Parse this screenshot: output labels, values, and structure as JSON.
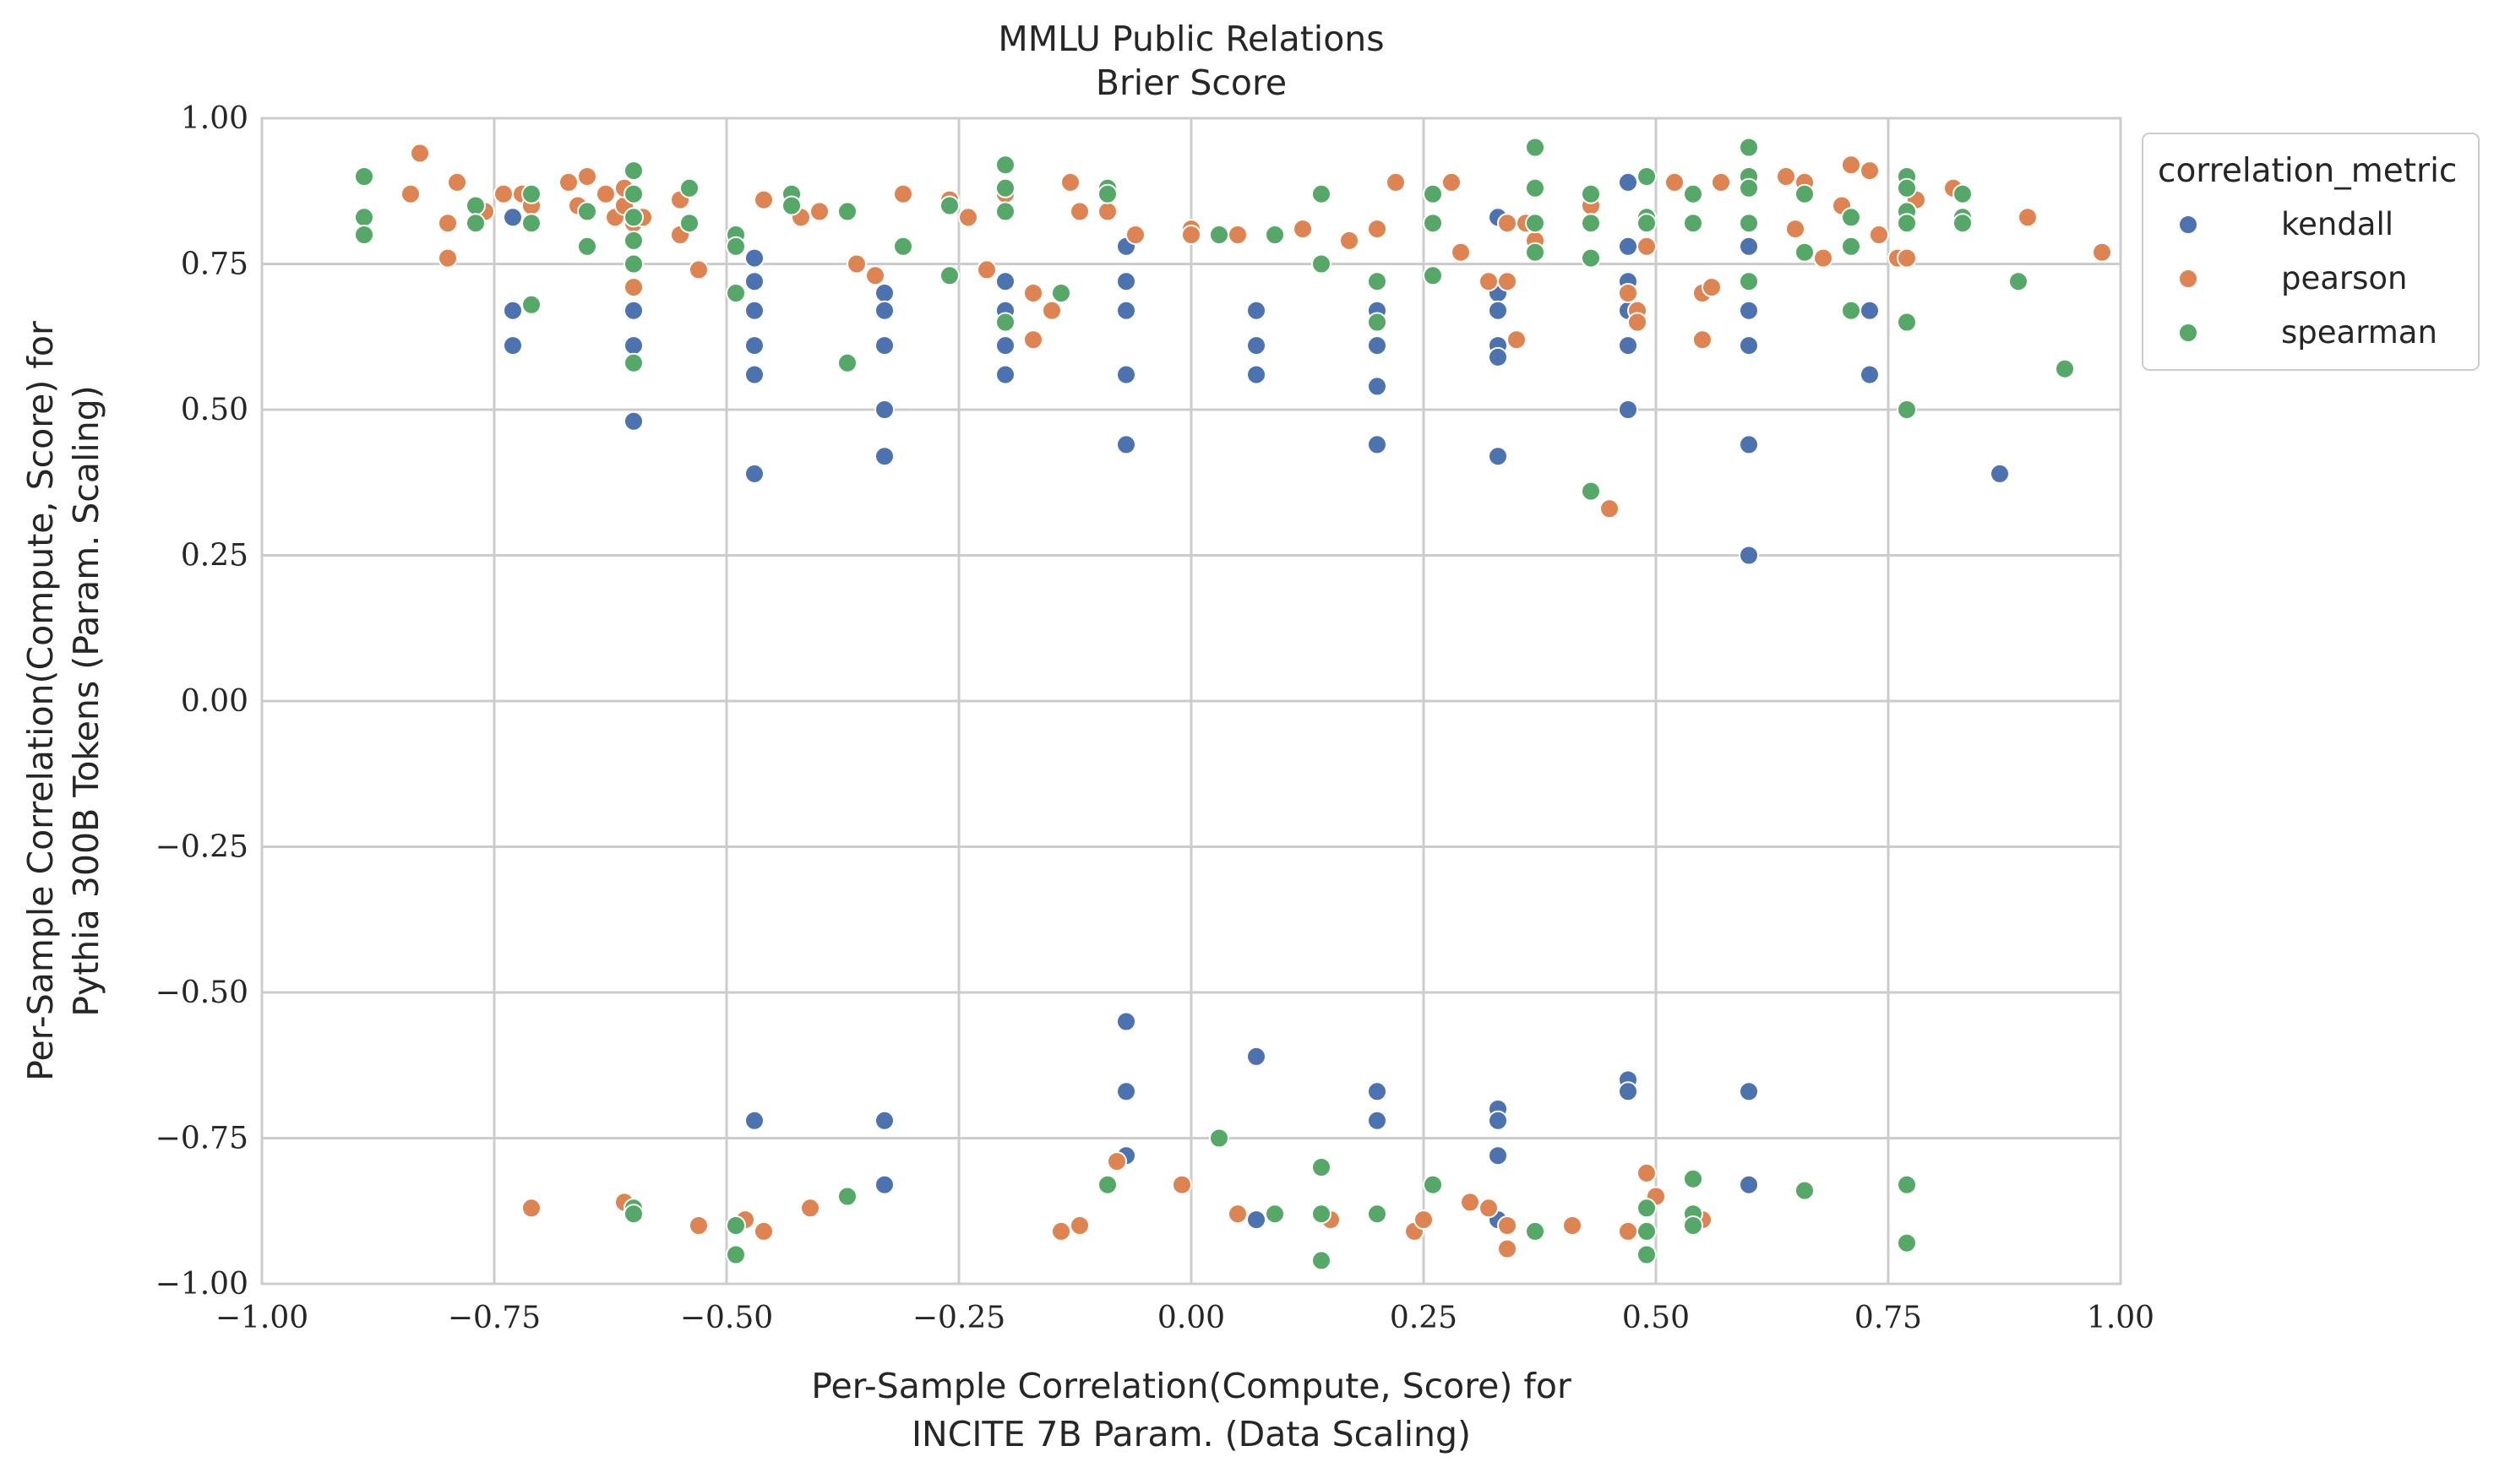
{
  "chart_data": {
    "type": "scatter",
    "title": "MMLU Public Relations",
    "subtitle": "Brier Score",
    "xlabel": [
      "Per-Sample Correlation(Compute, Score) for",
      "INCITE 7B Param. (Data Scaling)"
    ],
    "ylabel": [
      "Per-Sample Correlation(Compute, Score) for",
      "Pythia 300B Tokens (Param. Scaling)"
    ],
    "xlim": [
      -1.0,
      1.0
    ],
    "ylim": [
      -1.0,
      1.0
    ],
    "xticks": [
      "−1.00",
      "−0.75",
      "−0.50",
      "−0.25",
      "0.00",
      "0.25",
      "0.50",
      "0.75",
      "1.00"
    ],
    "yticks": [
      "−1.00",
      "−0.75",
      "−0.50",
      "−0.25",
      "0.00",
      "0.25",
      "0.50",
      "0.75",
      "1.00"
    ],
    "grid": true,
    "legend": {
      "title": "correlation_metric",
      "placement": "outside-right"
    },
    "series": [
      {
        "name": "kendall",
        "color": "#4c72b0",
        "points": [
          [
            -0.73,
            0.83
          ],
          [
            -0.73,
            0.67
          ],
          [
            -0.73,
            0.61
          ],
          [
            -0.6,
            0.67
          ],
          [
            -0.6,
            0.61
          ],
          [
            -0.6,
            0.48
          ],
          [
            -0.47,
            0.76
          ],
          [
            -0.47,
            0.72
          ],
          [
            -0.47,
            0.67
          ],
          [
            -0.47,
            0.61
          ],
          [
            -0.47,
            0.56
          ],
          [
            -0.47,
            0.39
          ],
          [
            -0.33,
            0.7
          ],
          [
            -0.33,
            0.67
          ],
          [
            -0.33,
            0.61
          ],
          [
            -0.33,
            0.5
          ],
          [
            -0.33,
            0.42
          ],
          [
            -0.2,
            0.72
          ],
          [
            -0.2,
            0.67
          ],
          [
            -0.2,
            0.61
          ],
          [
            -0.2,
            0.56
          ],
          [
            -0.07,
            0.78
          ],
          [
            -0.07,
            0.72
          ],
          [
            -0.07,
            0.67
          ],
          [
            -0.07,
            0.56
          ],
          [
            -0.07,
            0.44
          ],
          [
            0.07,
            0.67
          ],
          [
            0.07,
            0.61
          ],
          [
            0.07,
            0.56
          ],
          [
            0.2,
            0.72
          ],
          [
            0.2,
            0.67
          ],
          [
            0.2,
            0.61
          ],
          [
            0.2,
            0.54
          ],
          [
            0.2,
            0.44
          ],
          [
            0.33,
            0.83
          ],
          [
            0.33,
            0.7
          ],
          [
            0.33,
            0.67
          ],
          [
            0.33,
            0.61
          ],
          [
            0.33,
            0.59
          ],
          [
            0.33,
            0.42
          ],
          [
            0.47,
            0.89
          ],
          [
            0.47,
            0.78
          ],
          [
            0.47,
            0.72
          ],
          [
            0.47,
            0.67
          ],
          [
            0.47,
            0.61
          ],
          [
            0.47,
            0.5
          ],
          [
            0.6,
            0.89
          ],
          [
            0.6,
            0.78
          ],
          [
            0.6,
            0.67
          ],
          [
            0.6,
            0.61
          ],
          [
            0.6,
            0.44
          ],
          [
            0.6,
            0.25
          ],
          [
            0.73,
            0.67
          ],
          [
            0.73,
            0.56
          ],
          [
            0.87,
            0.39
          ],
          [
            -0.47,
            -0.72
          ],
          [
            -0.33,
            -0.72
          ],
          [
            -0.33,
            -0.83
          ],
          [
            -0.07,
            -0.55
          ],
          [
            -0.07,
            -0.67
          ],
          [
            -0.07,
            -0.78
          ],
          [
            0.07,
            -0.61
          ],
          [
            0.07,
            -0.89
          ],
          [
            0.2,
            -0.67
          ],
          [
            0.2,
            -0.72
          ],
          [
            0.33,
            -0.7
          ],
          [
            0.33,
            -0.72
          ],
          [
            0.33,
            -0.78
          ],
          [
            0.33,
            -0.89
          ],
          [
            0.47,
            -0.65
          ],
          [
            0.47,
            -0.67
          ],
          [
            0.6,
            -0.67
          ],
          [
            0.6,
            -0.83
          ]
        ]
      },
      {
        "name": "pearson",
        "color": "#dd8452",
        "points": [
          [
            -0.89,
            0.83
          ],
          [
            -0.84,
            0.87
          ],
          [
            -0.83,
            0.94
          ],
          [
            -0.8,
            0.82
          ],
          [
            -0.8,
            0.76
          ],
          [
            -0.79,
            0.89
          ],
          [
            -0.76,
            0.84
          ],
          [
            -0.74,
            0.87
          ],
          [
            -0.72,
            0.87
          ],
          [
            -0.71,
            0.85
          ],
          [
            -0.67,
            0.89
          ],
          [
            -0.66,
            0.85
          ],
          [
            -0.65,
            0.9
          ],
          [
            -0.63,
            0.87
          ],
          [
            -0.62,
            0.83
          ],
          [
            -0.61,
            0.85
          ],
          [
            -0.61,
            0.88
          ],
          [
            -0.6,
            0.82
          ],
          [
            -0.6,
            0.71
          ],
          [
            -0.59,
            0.83
          ],
          [
            -0.55,
            0.8
          ],
          [
            -0.55,
            0.86
          ],
          [
            -0.53,
            0.74
          ],
          [
            -0.46,
            0.86
          ],
          [
            -0.42,
            0.83
          ],
          [
            -0.4,
            0.84
          ],
          [
            -0.36,
            0.75
          ],
          [
            -0.34,
            0.73
          ],
          [
            -0.31,
            0.87
          ],
          [
            -0.26,
            0.86
          ],
          [
            -0.24,
            0.83
          ],
          [
            -0.22,
            0.74
          ],
          [
            -0.2,
            0.87
          ],
          [
            -0.17,
            0.7
          ],
          [
            -0.17,
            0.62
          ],
          [
            -0.15,
            0.67
          ],
          [
            -0.13,
            0.89
          ],
          [
            -0.12,
            0.84
          ],
          [
            -0.09,
            0.84
          ],
          [
            -0.06,
            0.8
          ],
          [
            0.0,
            0.81
          ],
          [
            0.0,
            0.8
          ],
          [
            0.05,
            0.8
          ],
          [
            0.12,
            0.81
          ],
          [
            0.17,
            0.79
          ],
          [
            0.2,
            0.81
          ],
          [
            0.22,
            0.89
          ],
          [
            0.28,
            0.89
          ],
          [
            0.29,
            0.77
          ],
          [
            0.32,
            0.72
          ],
          [
            0.34,
            0.82
          ],
          [
            0.34,
            0.72
          ],
          [
            0.35,
            0.62
          ],
          [
            0.36,
            0.82
          ],
          [
            0.37,
            0.79
          ],
          [
            0.43,
            0.85
          ],
          [
            0.45,
            0.33
          ],
          [
            0.47,
            0.7
          ],
          [
            0.48,
            0.67
          ],
          [
            0.48,
            0.65
          ],
          [
            0.49,
            0.78
          ],
          [
            0.52,
            0.89
          ],
          [
            0.55,
            0.7
          ],
          [
            0.55,
            0.62
          ],
          [
            0.56,
            0.71
          ],
          [
            0.57,
            0.89
          ],
          [
            0.64,
            0.9
          ],
          [
            0.65,
            0.81
          ],
          [
            0.66,
            0.89
          ],
          [
            0.68,
            0.76
          ],
          [
            0.7,
            0.85
          ],
          [
            0.71,
            0.92
          ],
          [
            0.73,
            0.91
          ],
          [
            0.74,
            0.8
          ],
          [
            0.76,
            0.76
          ],
          [
            0.77,
            0.76
          ],
          [
            0.78,
            0.86
          ],
          [
            0.82,
            0.88
          ],
          [
            0.9,
            0.83
          ],
          [
            0.98,
            0.77
          ],
          [
            -0.71,
            -0.87
          ],
          [
            -0.61,
            -0.86
          ],
          [
            -0.53,
            -0.9
          ],
          [
            -0.48,
            -0.89
          ],
          [
            -0.46,
            -0.91
          ],
          [
            -0.41,
            -0.87
          ],
          [
            -0.14,
            -0.91
          ],
          [
            -0.12,
            -0.9
          ],
          [
            -0.08,
            -0.79
          ],
          [
            -0.01,
            -0.83
          ],
          [
            0.05,
            -0.88
          ],
          [
            0.15,
            -0.89
          ],
          [
            0.24,
            -0.91
          ],
          [
            0.25,
            -0.89
          ],
          [
            0.3,
            -0.86
          ],
          [
            0.32,
            -0.87
          ],
          [
            0.34,
            -0.9
          ],
          [
            0.34,
            -0.94
          ],
          [
            0.41,
            -0.9
          ],
          [
            0.47,
            -0.91
          ],
          [
            0.49,
            -0.81
          ],
          [
            0.49,
            -0.91
          ],
          [
            0.5,
            -0.85
          ],
          [
            0.55,
            -0.89
          ]
        ]
      },
      {
        "name": "spearman",
        "color": "#55a868",
        "points": [
          [
            -0.89,
            0.9
          ],
          [
            -0.89,
            0.83
          ],
          [
            -0.89,
            0.8
          ],
          [
            -0.77,
            0.85
          ],
          [
            -0.77,
            0.82
          ],
          [
            -0.71,
            0.87
          ],
          [
            -0.71,
            0.82
          ],
          [
            -0.71,
            0.68
          ],
          [
            -0.65,
            0.84
          ],
          [
            -0.65,
            0.78
          ],
          [
            -0.6,
            0.91
          ],
          [
            -0.6,
            0.87
          ],
          [
            -0.6,
            0.83
          ],
          [
            -0.6,
            0.79
          ],
          [
            -0.6,
            0.75
          ],
          [
            -0.6,
            0.58
          ],
          [
            -0.54,
            0.88
          ],
          [
            -0.54,
            0.82
          ],
          [
            -0.49,
            0.8
          ],
          [
            -0.49,
            0.78
          ],
          [
            -0.49,
            0.7
          ],
          [
            -0.43,
            0.87
          ],
          [
            -0.43,
            0.85
          ],
          [
            -0.37,
            0.84
          ],
          [
            -0.37,
            0.58
          ],
          [
            -0.31,
            0.78
          ],
          [
            -0.26,
            0.85
          ],
          [
            -0.26,
            0.73
          ],
          [
            -0.2,
            0.92
          ],
          [
            -0.2,
            0.88
          ],
          [
            -0.2,
            0.84
          ],
          [
            -0.2,
            0.65
          ],
          [
            -0.14,
            0.7
          ],
          [
            -0.09,
            0.88
          ],
          [
            -0.09,
            0.87
          ],
          [
            0.03,
            0.8
          ],
          [
            0.09,
            0.8
          ],
          [
            0.14,
            0.87
          ],
          [
            0.14,
            0.75
          ],
          [
            0.2,
            0.72
          ],
          [
            0.2,
            0.65
          ],
          [
            0.26,
            0.87
          ],
          [
            0.26,
            0.82
          ],
          [
            0.26,
            0.73
          ],
          [
            0.37,
            0.95
          ],
          [
            0.37,
            0.88
          ],
          [
            0.37,
            0.82
          ],
          [
            0.37,
            0.77
          ],
          [
            0.43,
            0.87
          ],
          [
            0.43,
            0.82
          ],
          [
            0.43,
            0.76
          ],
          [
            0.43,
            0.36
          ],
          [
            0.49,
            0.9
          ],
          [
            0.49,
            0.83
          ],
          [
            0.49,
            0.82
          ],
          [
            0.54,
            0.87
          ],
          [
            0.54,
            0.82
          ],
          [
            0.6,
            0.95
          ],
          [
            0.6,
            0.9
          ],
          [
            0.6,
            0.88
          ],
          [
            0.6,
            0.82
          ],
          [
            0.6,
            0.72
          ],
          [
            0.66,
            0.87
          ],
          [
            0.66,
            0.77
          ],
          [
            0.71,
            0.83
          ],
          [
            0.71,
            0.78
          ],
          [
            0.71,
            0.67
          ],
          [
            0.77,
            0.9
          ],
          [
            0.77,
            0.88
          ],
          [
            0.77,
            0.84
          ],
          [
            0.77,
            0.82
          ],
          [
            0.77,
            0.65
          ],
          [
            0.77,
            0.5
          ],
          [
            0.83,
            0.87
          ],
          [
            0.83,
            0.83
          ],
          [
            0.83,
            0.82
          ],
          [
            0.89,
            0.72
          ],
          [
            0.94,
            0.57
          ],
          [
            -0.6,
            -0.87
          ],
          [
            -0.6,
            -0.88
          ],
          [
            -0.49,
            -0.9
          ],
          [
            -0.49,
            -0.95
          ],
          [
            -0.37,
            -0.85
          ],
          [
            -0.09,
            -0.83
          ],
          [
            0.03,
            -0.75
          ],
          [
            0.09,
            -0.88
          ],
          [
            0.14,
            -0.8
          ],
          [
            0.14,
            -0.88
          ],
          [
            0.14,
            -0.96
          ],
          [
            0.2,
            -0.88
          ],
          [
            0.26,
            -0.83
          ],
          [
            0.37,
            -0.91
          ],
          [
            0.49,
            -0.87
          ],
          [
            0.49,
            -0.91
          ],
          [
            0.49,
            -0.95
          ],
          [
            0.54,
            -0.82
          ],
          [
            0.54,
            -0.88
          ],
          [
            0.54,
            -0.9
          ],
          [
            0.66,
            -0.84
          ],
          [
            0.77,
            -0.83
          ],
          [
            0.77,
            -0.93
          ]
        ]
      }
    ]
  }
}
